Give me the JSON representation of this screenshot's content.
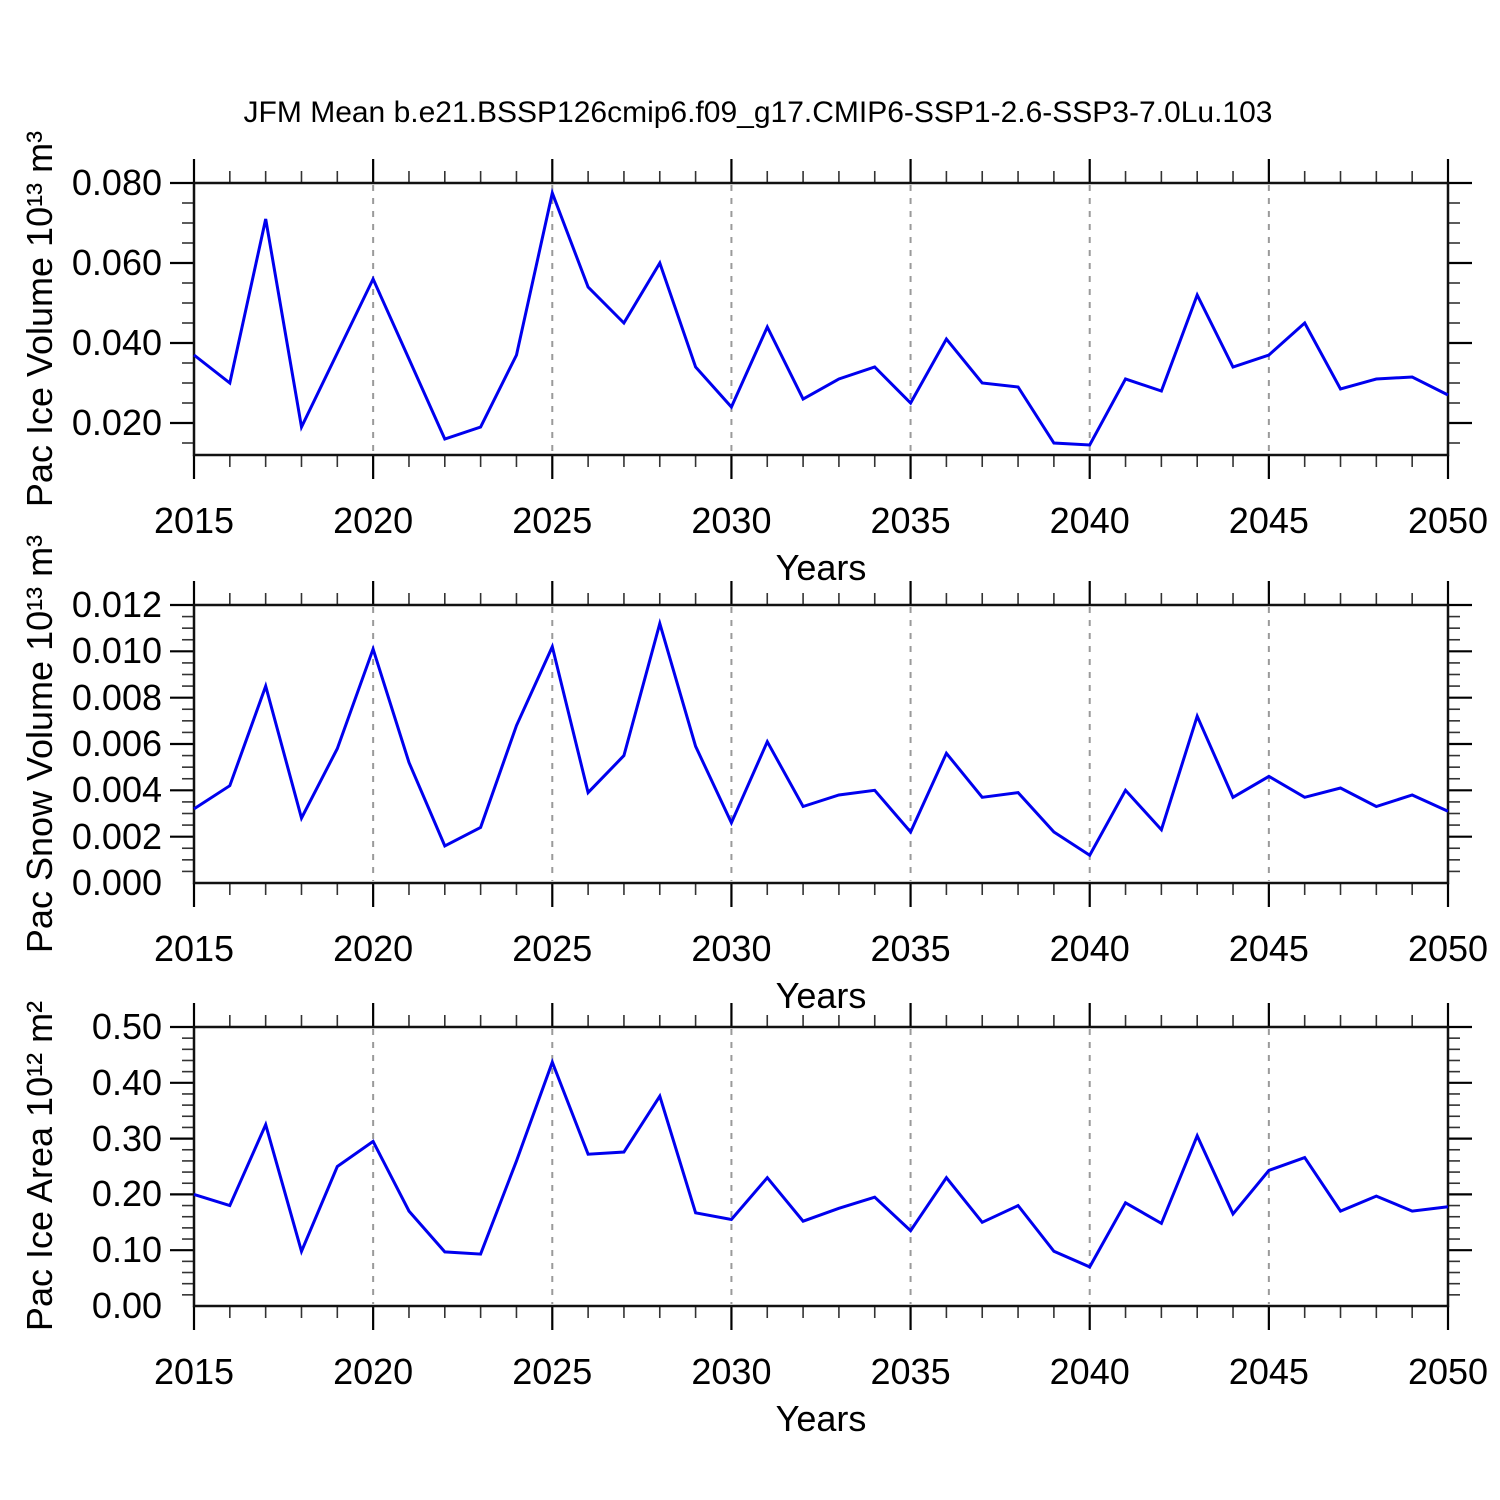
{
  "title": "JFM Mean b.e21.BSSP126cmip6.f09_g17.CMIP6-SSP1-2.6-SSP3-7.0Lu.103",
  "colors": {
    "line": "#0000ee",
    "grid": "#9a9a9a",
    "frame": "#111111",
    "tick_major": "#000000",
    "tick_minor": "#333333",
    "text": "#000000"
  },
  "x_axis": {
    "label": "Years",
    "range": [
      2015,
      2050
    ],
    "years": [
      2015,
      2016,
      2017,
      2018,
      2019,
      2020,
      2021,
      2022,
      2023,
      2024,
      2025,
      2026,
      2027,
      2028,
      2029,
      2030,
      2031,
      2032,
      2033,
      2034,
      2035,
      2036,
      2037,
      2038,
      2039,
      2040,
      2041,
      2042,
      2043,
      2044,
      2045,
      2046,
      2047,
      2048,
      2049,
      2050
    ],
    "major_ticks": [
      2015,
      2020,
      2025,
      2030,
      2035,
      2040,
      2045,
      2050
    ],
    "major_labels": [
      "2015",
      "2020",
      "2025",
      "2030",
      "2035",
      "2040",
      "2045",
      "2050"
    ],
    "minor_step": 1,
    "gridlines": [
      2020,
      2025,
      2030,
      2035,
      2040,
      2045
    ]
  },
  "chart_data": [
    {
      "type": "line",
      "name": "pac-ice-volume",
      "ylabel": "Pac Ice Volume 10¹³ m³",
      "xlabel": "Years",
      "legend": null,
      "grid": "vertical-dashed",
      "ylim": [
        0.012,
        0.08
      ],
      "y_major": {
        "values": [
          0.02,
          0.04,
          0.06,
          0.08
        ],
        "labels": [
          "0.020",
          "0.040",
          "0.060",
          "0.080"
        ]
      },
      "y_minor_step": 0.005,
      "x": [
        2015,
        2016,
        2017,
        2018,
        2019,
        2020,
        2021,
        2022,
        2023,
        2024,
        2025,
        2026,
        2027,
        2028,
        2029,
        2030,
        2031,
        2032,
        2033,
        2034,
        2035,
        2036,
        2037,
        2038,
        2039,
        2040,
        2041,
        2042,
        2043,
        2044,
        2045,
        2046,
        2047,
        2048,
        2049,
        2050
      ],
      "values": [
        0.037,
        0.03,
        0.071,
        0.019,
        0.0375,
        0.056,
        0.036,
        0.016,
        0.019,
        0.037,
        0.0775,
        0.054,
        0.045,
        0.06,
        0.034,
        0.024,
        0.044,
        0.026,
        0.031,
        0.034,
        0.025,
        0.041,
        0.03,
        0.029,
        0.015,
        0.0145,
        0.031,
        0.028,
        0.052,
        0.034,
        0.037,
        0.045,
        0.0285,
        0.031,
        0.0315,
        0.027
      ]
    },
    {
      "type": "line",
      "name": "pac-snow-volume",
      "ylabel": "Pac Snow Volume 10¹³ m³",
      "xlabel": "Years",
      "legend": null,
      "grid": "vertical-dashed",
      "ylim": [
        0.0,
        0.012
      ],
      "y_major": {
        "values": [
          0.0,
          0.002,
          0.004,
          0.006,
          0.008,
          0.01,
          0.012
        ],
        "labels": [
          "0.000",
          "0.002",
          "0.004",
          "0.006",
          "0.008",
          "0.010",
          "0.012"
        ]
      },
      "y_minor_step": 0.0005,
      "x": [
        2015,
        2016,
        2017,
        2018,
        2019,
        2020,
        2021,
        2022,
        2023,
        2024,
        2025,
        2026,
        2027,
        2028,
        2029,
        2030,
        2031,
        2032,
        2033,
        2034,
        2035,
        2036,
        2037,
        2038,
        2039,
        2040,
        2041,
        2042,
        2043,
        2044,
        2045,
        2046,
        2047,
        2048,
        2049,
        2050
      ],
      "values": [
        0.0032,
        0.0042,
        0.0085,
        0.0028,
        0.0058,
        0.0101,
        0.0052,
        0.0016,
        0.0024,
        0.0068,
        0.0102,
        0.0039,
        0.0055,
        0.0112,
        0.0059,
        0.0026,
        0.0061,
        0.0033,
        0.0038,
        0.004,
        0.0022,
        0.0056,
        0.0037,
        0.0039,
        0.0022,
        0.0012,
        0.004,
        0.0023,
        0.0072,
        0.0037,
        0.0046,
        0.0037,
        0.0041,
        0.0033,
        0.0038,
        0.0031
      ]
    },
    {
      "type": "line",
      "name": "pac-ice-area",
      "ylabel": "Pac Ice Area 10¹² m²",
      "xlabel": "Years",
      "legend": null,
      "grid": "vertical-dashed",
      "ylim": [
        0.0,
        0.5
      ],
      "y_major": {
        "values": [
          0.0,
          0.1,
          0.2,
          0.3,
          0.4,
          0.5
        ],
        "labels": [
          "0.00",
          "0.10",
          "0.20",
          "0.30",
          "0.40",
          "0.50"
        ]
      },
      "y_minor_step": 0.02,
      "x": [
        2015,
        2016,
        2017,
        2018,
        2019,
        2020,
        2021,
        2022,
        2023,
        2024,
        2025,
        2026,
        2027,
        2028,
        2029,
        2030,
        2031,
        2032,
        2033,
        2034,
        2035,
        2036,
        2037,
        2038,
        2039,
        2040,
        2041,
        2042,
        2043,
        2044,
        2045,
        2046,
        2047,
        2048,
        2049,
        2050
      ],
      "values": [
        0.2,
        0.18,
        0.325,
        0.098,
        0.25,
        0.295,
        0.17,
        0.097,
        0.093,
        0.26,
        0.437,
        0.272,
        0.276,
        0.376,
        0.167,
        0.155,
        0.23,
        0.152,
        0.175,
        0.195,
        0.135,
        0.23,
        0.15,
        0.18,
        0.098,
        0.07,
        0.185,
        0.148,
        0.305,
        0.165,
        0.243,
        0.266,
        0.17,
        0.197,
        0.17,
        0.178
      ]
    }
  ]
}
